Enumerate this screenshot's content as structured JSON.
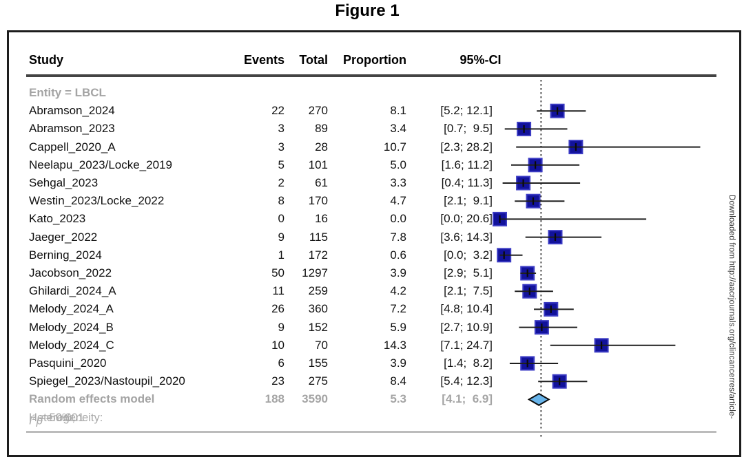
{
  "figure_title": "Figure 1",
  "watermark_text": "Downloaded from http://aacrjournals.org/clincancerres/article-",
  "table": {
    "columns": {
      "study": "Study",
      "events": "Events",
      "total": "Total",
      "proportion": "Proportion",
      "ci": "95%-CI"
    }
  },
  "colors": {
    "square_fill": "#12129b",
    "square_border": "#3b3bc4",
    "diamond_fill": "#68b4ea",
    "diamond_border": "#0c0c0c",
    "ci_line": "#1f1f1f",
    "reference_line": "#222222",
    "gray_text": "#a4a4a4"
  },
  "chart_data": {
    "type": "forest",
    "group_label": "Entity = LBCL",
    "x_axis": {
      "scale": "linear",
      "unit": "proportion (%)",
      "reference_line_value": 5.8
    },
    "studies": [
      {
        "name": "Abramson_2024",
        "events": "22",
        "total": "270",
        "proportion": "8.1",
        "ci": "[5.2; 12.1]",
        "value": 8.1,
        "ci_low": 5.2,
        "ci_high": 12.1
      },
      {
        "name": "Abramson_2023",
        "events": "3",
        "total": "89",
        "proportion": "3.4",
        "ci": "[0.7;  9.5]",
        "value": 3.4,
        "ci_low": 0.7,
        "ci_high": 9.5
      },
      {
        "name": "Cappell_2020_A",
        "events": "3",
        "total": "28",
        "proportion": "10.7",
        "ci": "[2.3; 28.2]",
        "value": 10.7,
        "ci_low": 2.3,
        "ci_high": 28.2
      },
      {
        "name": "Neelapu_2023/Locke_2019",
        "events": "5",
        "total": "101",
        "proportion": "5.0",
        "ci": "[1.6; 11.2]",
        "value": 5.0,
        "ci_low": 1.6,
        "ci_high": 11.2
      },
      {
        "name": "Sehgal_2023",
        "events": "2",
        "total": "61",
        "proportion": "3.3",
        "ci": "[0.4; 11.3]",
        "value": 3.3,
        "ci_low": 0.4,
        "ci_high": 11.3
      },
      {
        "name": "Westin_2023/Locke_2022",
        "events": "8",
        "total": "170",
        "proportion": "4.7",
        "ci": "[2.1;  9.1]",
        "value": 4.7,
        "ci_low": 2.1,
        "ci_high": 9.1
      },
      {
        "name": "Kato_2023",
        "events": "0",
        "total": "16",
        "proportion": "0.0",
        "ci": "[0.0; 20.6]",
        "value": 0.0,
        "ci_low": 0.0,
        "ci_high": 20.6
      },
      {
        "name": "Jaeger_2022",
        "events": "9",
        "total": "115",
        "proportion": "7.8",
        "ci": "[3.6; 14.3]",
        "value": 7.8,
        "ci_low": 3.6,
        "ci_high": 14.3
      },
      {
        "name": "Berning_2024",
        "events": "1",
        "total": "172",
        "proportion": "0.6",
        "ci": "[0.0;  3.2]",
        "value": 0.6,
        "ci_low": 0.0,
        "ci_high": 3.2
      },
      {
        "name": "Jacobson_2022",
        "events": "50",
        "total": "1297",
        "proportion": "3.9",
        "ci": "[2.9;  5.1]",
        "value": 3.9,
        "ci_low": 2.9,
        "ci_high": 5.1
      },
      {
        "name": "Ghilardi_2024_A",
        "events": "11",
        "total": "259",
        "proportion": "4.2",
        "ci": "[2.1;  7.5]",
        "value": 4.2,
        "ci_low": 2.1,
        "ci_high": 7.5
      },
      {
        "name": "Melody_2024_A",
        "events": "26",
        "total": "360",
        "proportion": "7.2",
        "ci": "[4.8; 10.4]",
        "value": 7.2,
        "ci_low": 4.8,
        "ci_high": 10.4
      },
      {
        "name": "Melody_2024_B",
        "events": "9",
        "total": "152",
        "proportion": "5.9",
        "ci": "[2.7; 10.9]",
        "value": 5.9,
        "ci_low": 2.7,
        "ci_high": 10.9
      },
      {
        "name": "Melody_2024_C",
        "events": "10",
        "total": "70",
        "proportion": "14.3",
        "ci": "[7.1; 24.7]",
        "value": 14.3,
        "ci_low": 7.1,
        "ci_high": 24.7
      },
      {
        "name": "Pasquini_2020",
        "events": "6",
        "total": "155",
        "proportion": "3.9",
        "ci": "[1.4;  8.2]",
        "value": 3.9,
        "ci_low": 1.4,
        "ci_high": 8.2
      },
      {
        "name": "Spiegel_2023/Nastoupil_2020",
        "events": "23",
        "total": "275",
        "proportion": "8.4",
        "ci": "[5.4; 12.3]",
        "value": 8.4,
        "ci_low": 5.4,
        "ci_high": 12.3
      }
    ],
    "summary": {
      "name": "Random effects model",
      "events": "188",
      "total": "3590",
      "proportion": "5.3",
      "ci": "[4.1;  6.9]",
      "value": 5.3,
      "ci_low": 4.1,
      "ci_high": 6.9
    },
    "heterogeneity": {
      "prefix": "Heterogeneity: ",
      "i_label": "I",
      "i_sup": "2",
      "mid": " = 59%, ",
      "p_label": "p",
      "tail": " = 0.001"
    }
  }
}
